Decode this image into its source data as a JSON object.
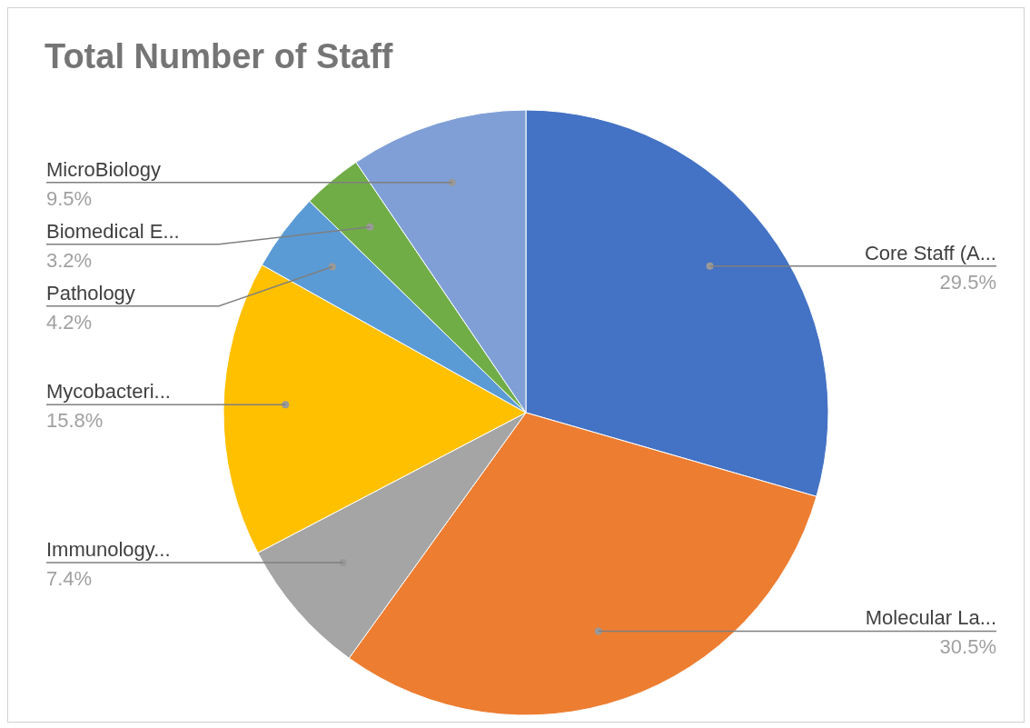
{
  "chart_data": {
    "type": "pie",
    "title": "Total Number of Staff",
    "categories": [
      "Core Staff (A...",
      "Molecular La...",
      "Immunology...",
      "Mycobacteri...",
      "Pathology",
      "Biomedical E...",
      "MicroBiology"
    ],
    "values": [
      29.5,
      30.5,
      7.4,
      15.8,
      4.2,
      3.2,
      9.5
    ],
    "value_labels": [
      "29.5%",
      "30.5%",
      "7.4%",
      "15.8%",
      "4.2%",
      "3.2%",
      "9.5%"
    ],
    "colors": [
      "#4472c4",
      "#ed7d31",
      "#a5a5a5",
      "#ffc000",
      "#5b9bd5",
      "#70ad47",
      "#7f9fd6"
    ],
    "legend": false
  }
}
